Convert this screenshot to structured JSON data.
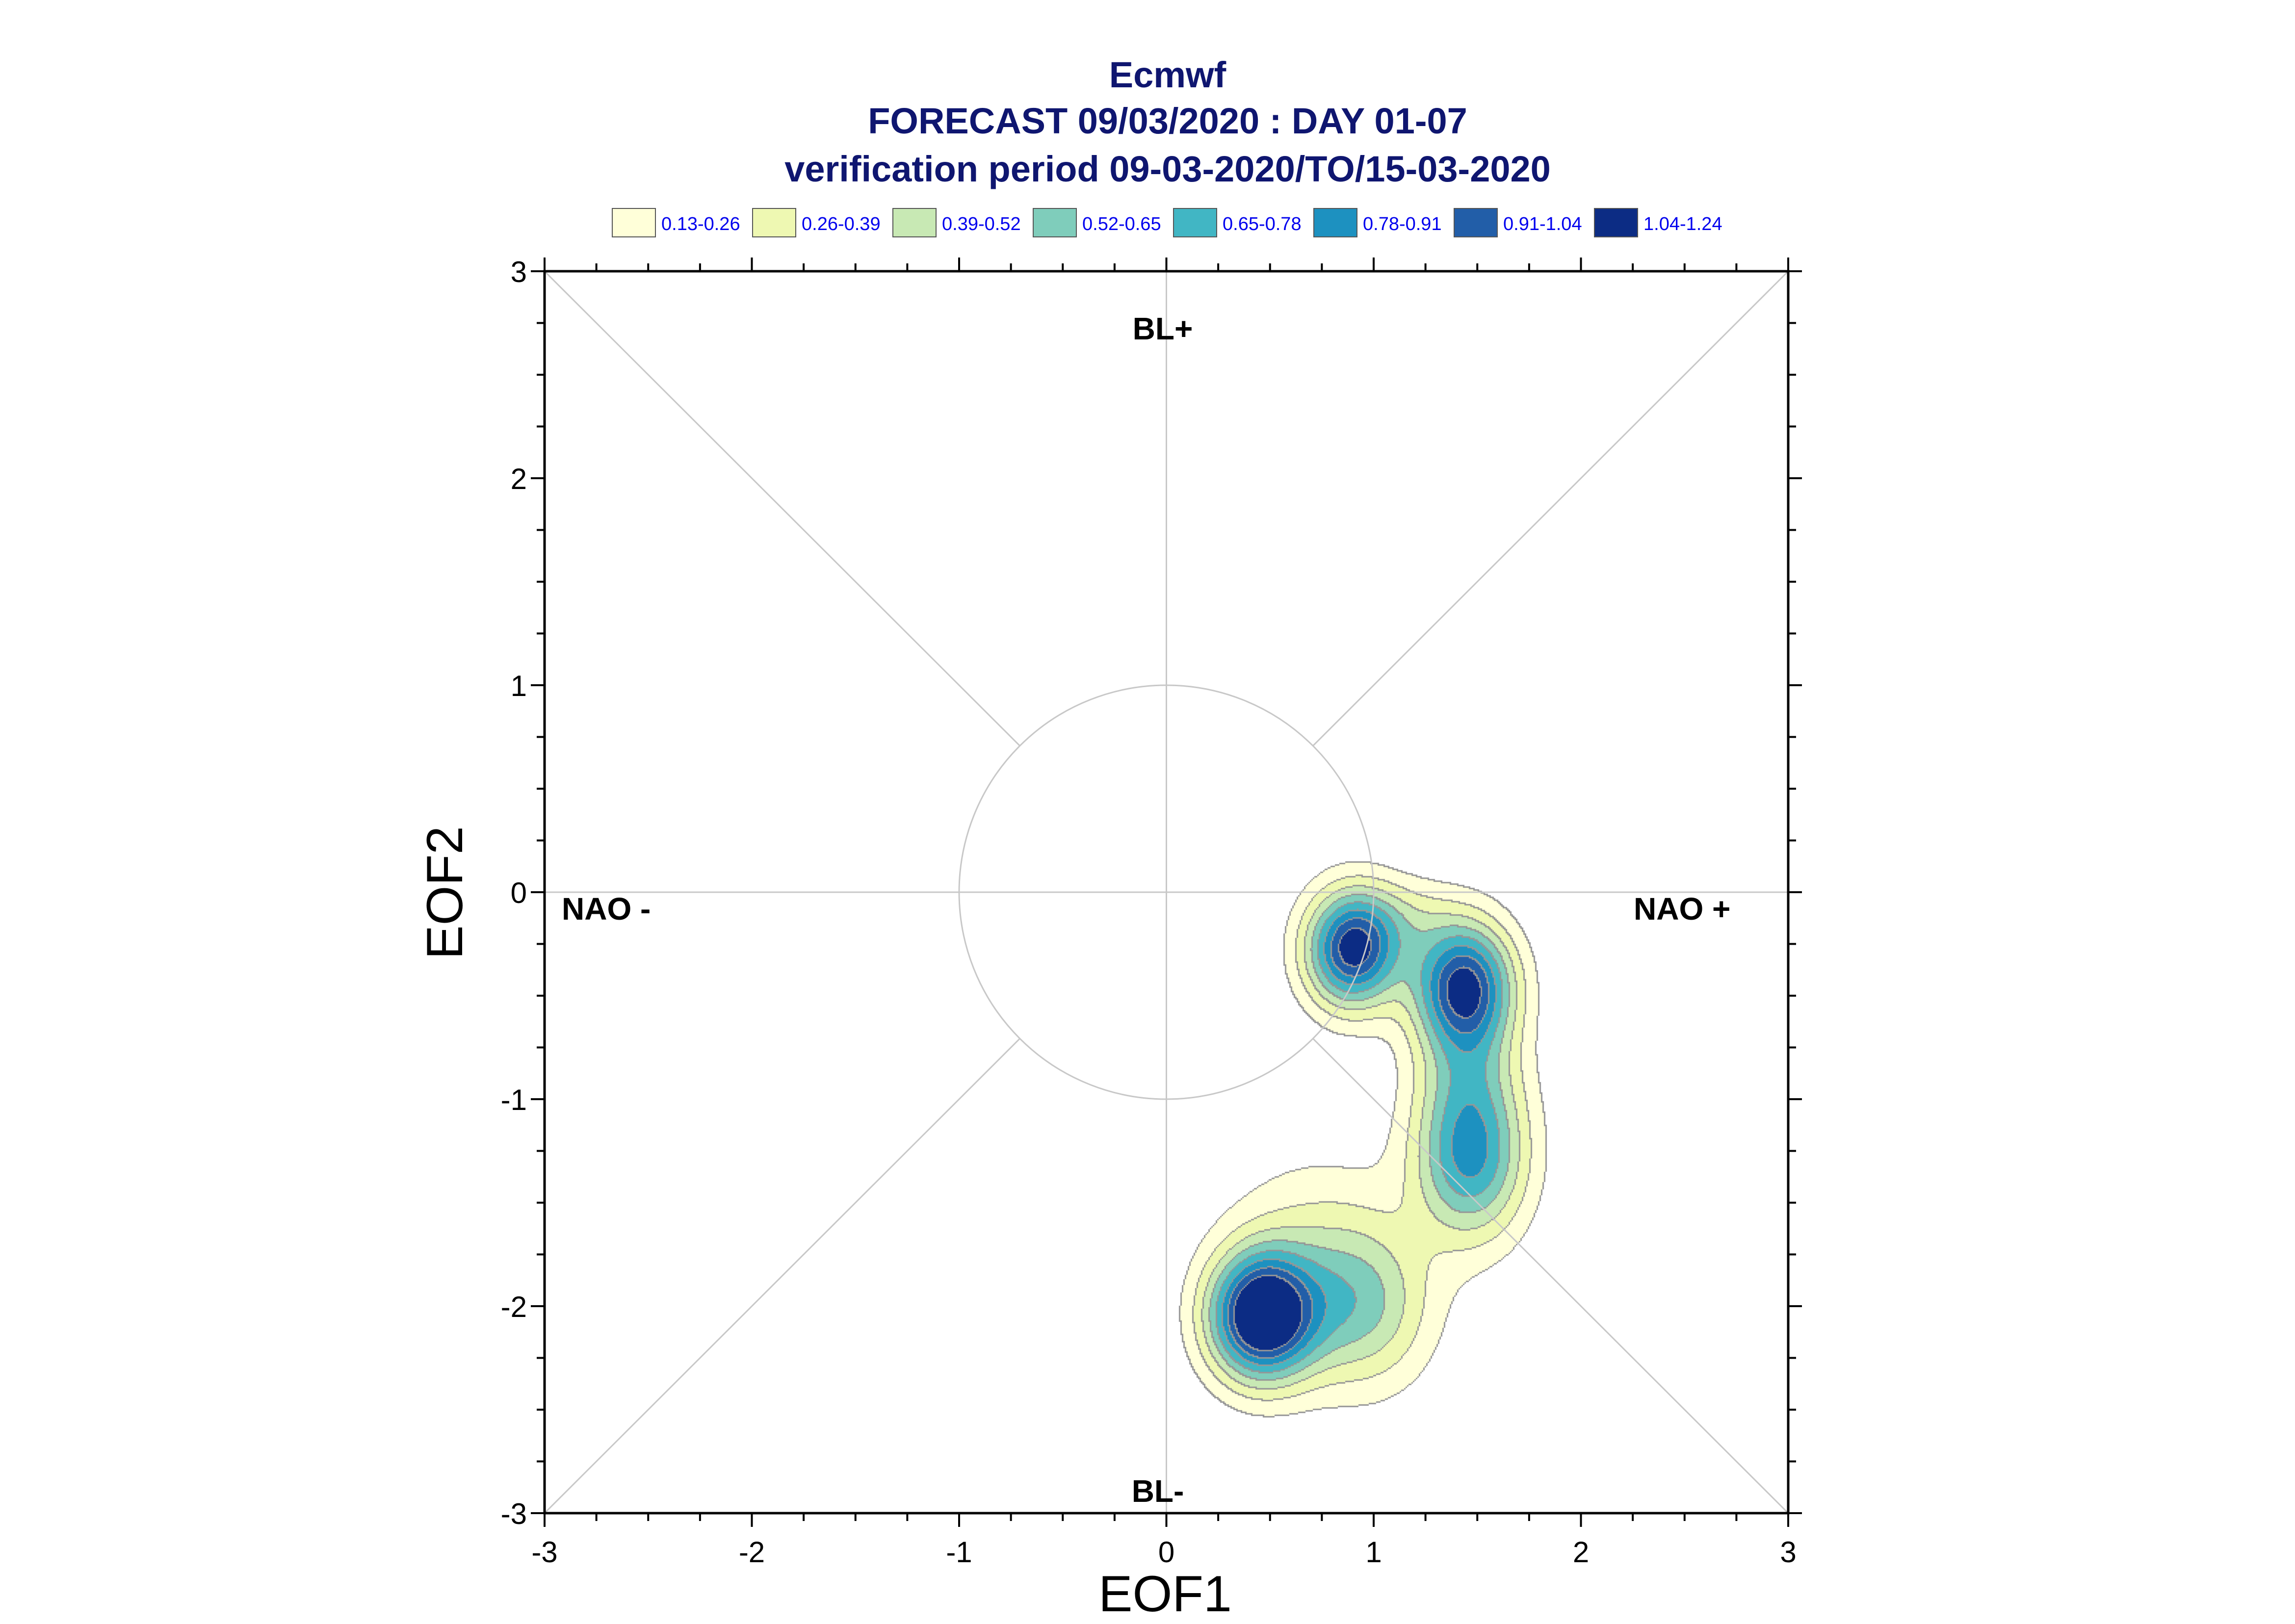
{
  "title": {
    "line1": "Ecmwf",
    "line2": "FORECAST 09/03/2020 : DAY 01-07",
    "line3": "verification period 09-03-2020/TO/15-03-2020"
  },
  "chart_data": {
    "type": "contour",
    "xlabel": "EOF1",
    "ylabel": "EOF2",
    "xlim": [
      -3,
      3
    ],
    "ylim": [
      -3,
      3
    ],
    "xticks": [
      "-3",
      "-2",
      "-1",
      "0",
      "1",
      "2",
      "3"
    ],
    "yticks": [
      "-3",
      "-2",
      "-1",
      "0",
      "1",
      "2",
      "3"
    ],
    "reference_circle_radius": 1,
    "regime_labels": {
      "top": "BL+",
      "bottom": "BL-",
      "left": "NAO -",
      "right": "NAO +"
    },
    "legend": [
      {
        "label": "0.13-0.26",
        "color": "#ffffd9"
      },
      {
        "label": "0.26-0.39",
        "color": "#eef8b2"
      },
      {
        "label": "0.39-0.52",
        "color": "#c8e9b4"
      },
      {
        "label": "0.52-0.65",
        "color": "#7fcdbb"
      },
      {
        "label": "0.65-0.78",
        "color": "#41b6c4"
      },
      {
        "label": "0.78-0.91",
        "color": "#1d91c0"
      },
      {
        "label": "0.91-1.04",
        "color": "#225ea8"
      },
      {
        "label": "1.04-1.24",
        "color": "#0c2c84"
      }
    ],
    "levels": [
      0.13,
      0.26,
      0.39,
      0.52,
      0.65,
      0.78,
      0.91,
      1.04,
      1.24
    ],
    "density_peaks": [
      {
        "x": 0.9,
        "y": -0.28,
        "max": 1.04
      },
      {
        "x": 1.44,
        "y": -0.46,
        "max": 1.04
      },
      {
        "x": 1.47,
        "y": -1.28,
        "max": 0.78
      },
      {
        "x": 0.46,
        "y": -2.05,
        "max": 1.24
      },
      {
        "x": 0.93,
        "y": -2.0,
        "max": 0.52
      }
    ]
  }
}
